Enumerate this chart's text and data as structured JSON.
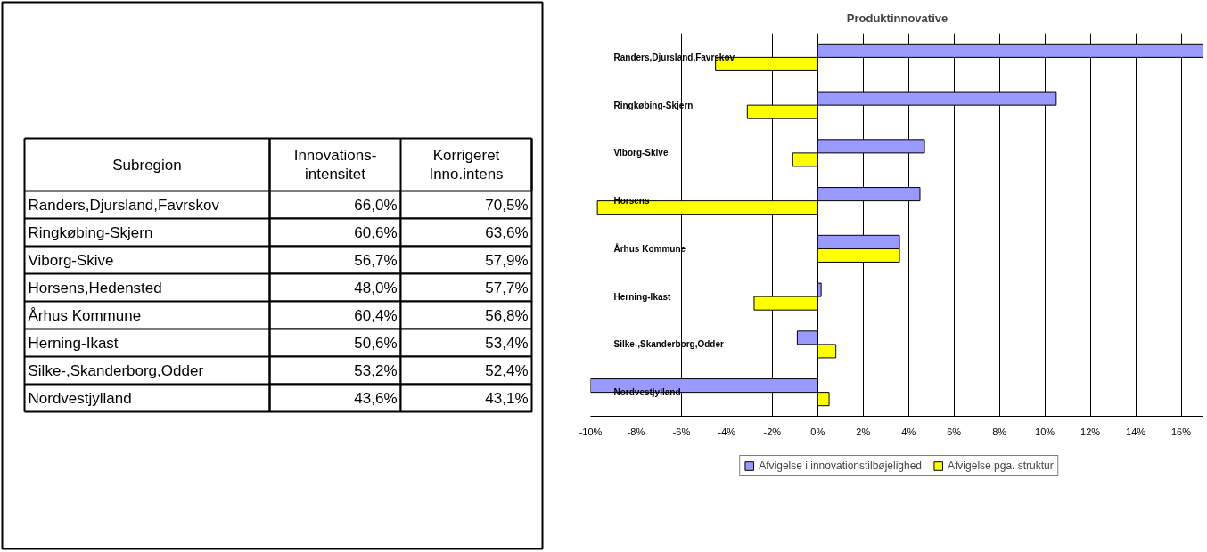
{
  "chart_data": [
    {
      "type": "other",
      "ylabel": "Subregion",
      "categories": [
        "Innovations-\nintensitet",
        "Korrigeret\nInno.intens"
      ],
      "y_categories": [
        "Randers,Djursland,Favrskov",
        "Ringkøbing-Skjern",
        "Viborg-Skive",
        "Horsens,Hedensted",
        "Århus Kommune",
        "Herning-Ikast",
        "Silke-,Skanderborg,Odder",
        "Nordvestjylland"
      ],
      "cell_labels": [
        [
          "66,0%",
          "70,5%"
        ],
        [
          "60,6%",
          "63,6%"
        ],
        [
          "56,7%",
          "57,9%"
        ],
        [
          "48,0%",
          "57,7%"
        ],
        [
          "60,4%",
          "56,8%"
        ],
        [
          "50,6%",
          "53,4%"
        ],
        [
          "53,2%",
          "52,4%"
        ],
        [
          "43,6%",
          "43,1%"
        ]
      ]
    },
    {
      "type": "bar",
      "title": "Produktinnovative",
      "orientation": "horizontal",
      "categories": [
        "Randers,Djursland,Favrskov",
        "Ringkøbing-Skjern",
        "Viborg-Skive",
        "Horsens",
        "Århus Kommune",
        "Herning-Ikast",
        "Silke-,Skanderborg,Odder",
        "Nordvestjylland"
      ],
      "series": [
        {
          "name": "Afvigelse i innovationstilbøjelighed",
          "color": "#9999ff",
          "values": [
            17.0,
            10.5,
            4.7,
            4.5,
            3.6,
            0.15,
            -0.9,
            -10.0
          ]
        },
        {
          "name": "Afvigelse pga. struktur",
          "color": "#ffff00",
          "values": [
            -4.5,
            -3.1,
            -1.1,
            -9.7,
            3.6,
            -2.8,
            0.8,
            0.5
          ]
        }
      ],
      "xlim": [
        -10,
        17
      ],
      "xticks": [
        {
          "value": -10,
          "label": "-10%"
        },
        {
          "value": -8,
          "label": "-8%"
        },
        {
          "value": -6,
          "label": "-6%"
        },
        {
          "value": -4,
          "label": "-4%"
        },
        {
          "value": -2,
          "label": "-2%"
        },
        {
          "value": 0,
          "label": "0%"
        },
        {
          "value": 2,
          "label": "2%"
        },
        {
          "value": 4,
          "label": "4%"
        },
        {
          "value": 6,
          "label": "6%"
        },
        {
          "value": 8,
          "label": "8%"
        },
        {
          "value": 10,
          "label": "10%"
        },
        {
          "value": 12,
          "label": "12%"
        },
        {
          "value": 14,
          "label": "14%"
        },
        {
          "value": 16,
          "label": "16%"
        }
      ],
      "grid": "x",
      "legend": "bottom"
    }
  ]
}
